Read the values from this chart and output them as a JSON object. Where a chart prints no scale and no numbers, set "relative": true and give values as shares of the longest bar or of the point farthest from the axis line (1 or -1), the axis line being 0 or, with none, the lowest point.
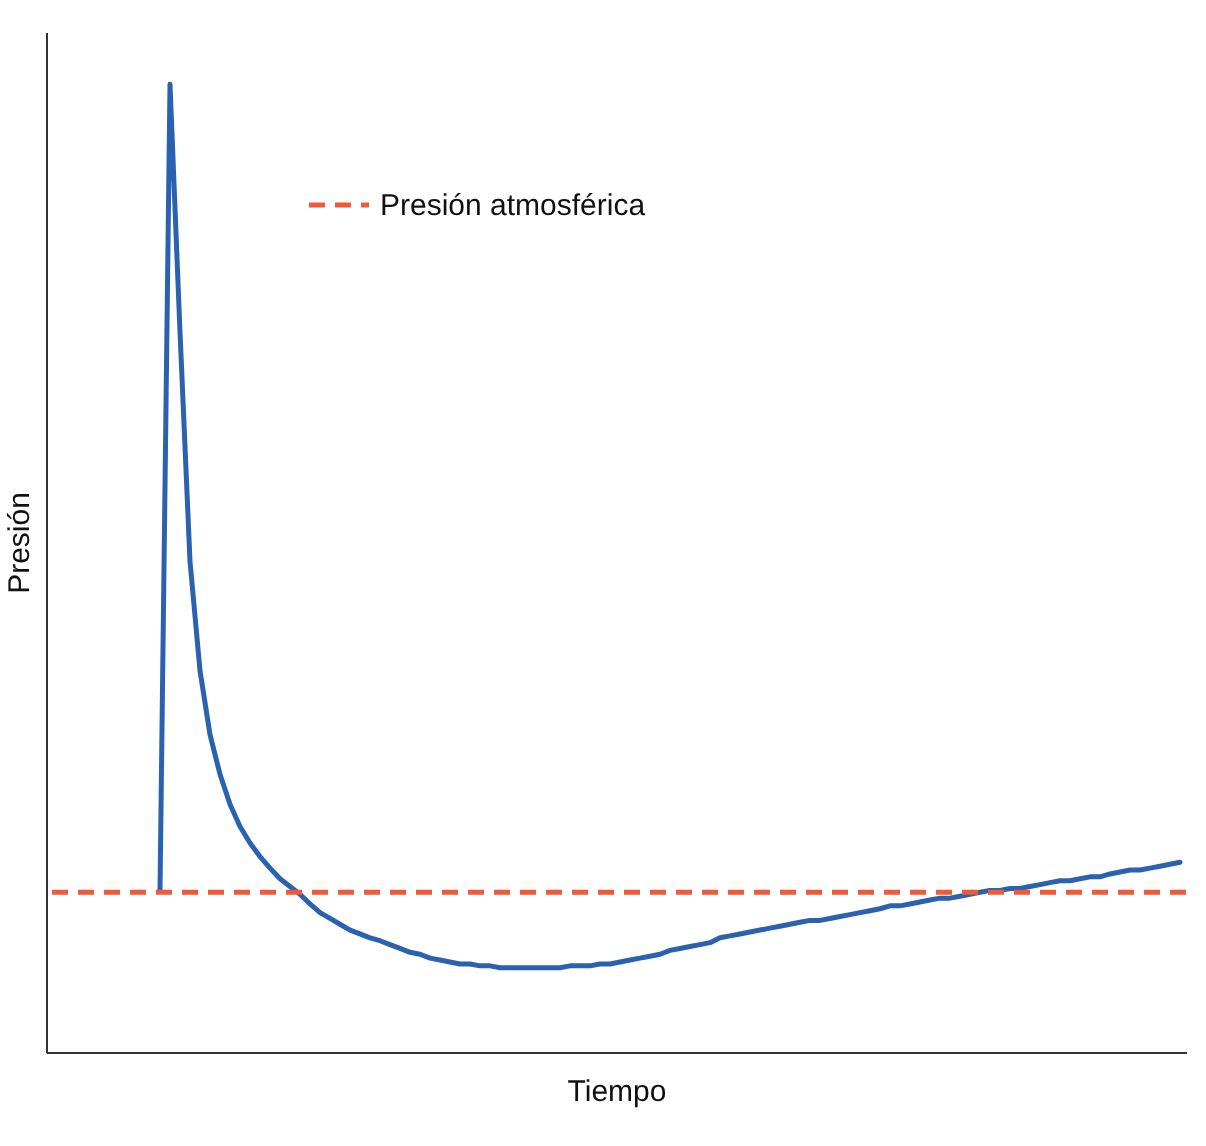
{
  "chart_data": {
    "type": "line",
    "relative": true,
    "xlabel": "Tiempo",
    "ylabel": "Presión",
    "categories": [
      null,
      null,
      null,
      null,
      null,
      null,
      null,
      null,
      null,
      null,
      null,
      null,
      null,
      null,
      null,
      null,
      null,
      null,
      null,
      null,
      null,
      null,
      null,
      null,
      null,
      null,
      null,
      null,
      null,
      null,
      null,
      null,
      null,
      null,
      null,
      null,
      null,
      null,
      null,
      null,
      null,
      null,
      null,
      null,
      null,
      null,
      null,
      null,
      null,
      null,
      null,
      null,
      null,
      null,
      null,
      null,
      null,
      null,
      null,
      null,
      null,
      null,
      null,
      null,
      null,
      null,
      null,
      null,
      null,
      null,
      null,
      null,
      null,
      null,
      null,
      null,
      null,
      null,
      null,
      null,
      null,
      null,
      null,
      null,
      null,
      null,
      null,
      null,
      null,
      null,
      null,
      null,
      null,
      null,
      null,
      null,
      null,
      null,
      null,
      null,
      null,
      null,
      null
    ],
    "series": [
      {
        "color": "#2a62b0",
        "values": [
          0.167,
          1.0,
          0.744,
          0.507,
          0.394,
          0.328,
          0.287,
          0.256,
          0.233,
          0.216,
          0.202,
          0.19,
          0.179,
          0.171,
          0.163,
          0.153,
          0.144,
          0.138,
          0.132,
          0.126,
          0.122,
          0.118,
          0.115,
          0.111,
          0.107,
          0.103,
          0.101,
          0.097,
          0.095,
          0.093,
          0.091,
          0.091,
          0.089,
          0.089,
          0.087,
          0.087,
          0.087,
          0.087,
          0.087,
          0.087,
          0.087,
          0.089,
          0.089,
          0.089,
          0.091,
          0.091,
          0.093,
          0.095,
          0.097,
          0.099,
          0.101,
          0.105,
          0.107,
          0.109,
          0.111,
          0.113,
          0.118,
          0.12,
          0.122,
          0.124,
          0.126,
          0.128,
          0.13,
          0.132,
          0.134,
          0.136,
          0.136,
          0.138,
          0.14,
          0.142,
          0.144,
          0.146,
          0.148,
          0.151,
          0.151,
          0.153,
          0.155,
          0.157,
          0.159,
          0.159,
          0.161,
          0.163,
          0.165,
          0.167,
          0.167,
          0.169,
          0.169,
          0.171,
          0.173,
          0.175,
          0.177,
          0.177,
          0.179,
          0.181,
          0.181,
          0.184,
          0.186,
          0.188,
          0.188,
          0.19,
          0.192,
          0.194,
          0.196
        ]
      }
    ],
    "ref_lines": [
      {
        "axis": "y",
        "value": 0.165,
        "label": "Presión atmosférica",
        "color": "#ee5a3a",
        "line_style": "dashed"
      }
    ],
    "legend": "top",
    "grid": false,
    "marker": "none",
    "line_style": "solid",
    "tick_labels": false
  }
}
